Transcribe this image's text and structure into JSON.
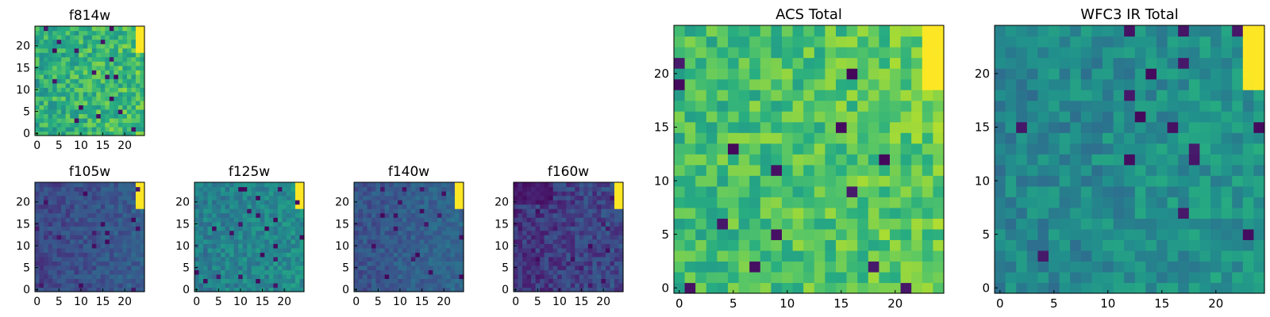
{
  "chart_data": {
    "type": "heatmap",
    "colormap": "viridis",
    "grid_size": 25,
    "panels": [
      {
        "id": "f814w",
        "title": "f814w",
        "xticks": [
          0,
          5,
          10,
          15,
          20
        ],
        "yticks": [
          0,
          5,
          10,
          15,
          20
        ],
        "summary": {
          "base_level": 0.62,
          "variation": 0.16,
          "corner_level": 0.98,
          "outliers": "scattered dark pixels"
        }
      },
      {
        "id": "f105w",
        "title": "f105w",
        "xticks": [
          0,
          5,
          10,
          15,
          20
        ],
        "yticks": [
          0,
          5,
          10,
          15,
          20
        ],
        "summary": {
          "base_level": 0.22,
          "variation": 0.07,
          "corner_level": 0.96,
          "outliers": "few darker pixels"
        }
      },
      {
        "id": "f125w",
        "title": "f125w",
        "xticks": [
          0,
          5,
          10,
          15,
          20
        ],
        "yticks": [
          0,
          5,
          10,
          15,
          20
        ],
        "summary": {
          "base_level": 0.42,
          "variation": 0.1,
          "corner_level": 0.98,
          "outliers": "few darker pixels"
        }
      },
      {
        "id": "f140w",
        "title": "f140w",
        "xticks": [
          0,
          5,
          10,
          15,
          20
        ],
        "yticks": [
          0,
          5,
          10,
          15,
          20
        ],
        "summary": {
          "base_level": 0.26,
          "variation": 0.07,
          "corner_level": 0.98,
          "outliers": "few darker pixels"
        }
      },
      {
        "id": "f160w",
        "title": "f160w",
        "xticks": [
          0,
          5,
          10,
          15,
          20
        ],
        "yticks": [
          0,
          5,
          10,
          15,
          20
        ],
        "summary": {
          "base_level": 0.16,
          "variation": 0.09,
          "corner_level": 0.98,
          "outliers": "dark top-left region"
        }
      },
      {
        "id": "acs_total",
        "title": "ACS Total",
        "xticks": [
          0,
          5,
          10,
          15,
          20
        ],
        "yticks": [
          0,
          5,
          10,
          15,
          20
        ],
        "summary": {
          "base_level": 0.68,
          "variation": 0.14,
          "corner_level": 0.97,
          "outliers": "scattered dark pixels"
        }
      },
      {
        "id": "wfc3_ir_total",
        "title": "WFC3 IR Total",
        "xticks": [
          0,
          5,
          10,
          15,
          20
        ],
        "yticks": [
          0,
          5,
          10,
          15,
          20
        ],
        "summary": {
          "base_level": 0.45,
          "variation": 0.11,
          "corner_level": 0.97,
          "outliers": "scattered dark pixels"
        }
      }
    ]
  }
}
